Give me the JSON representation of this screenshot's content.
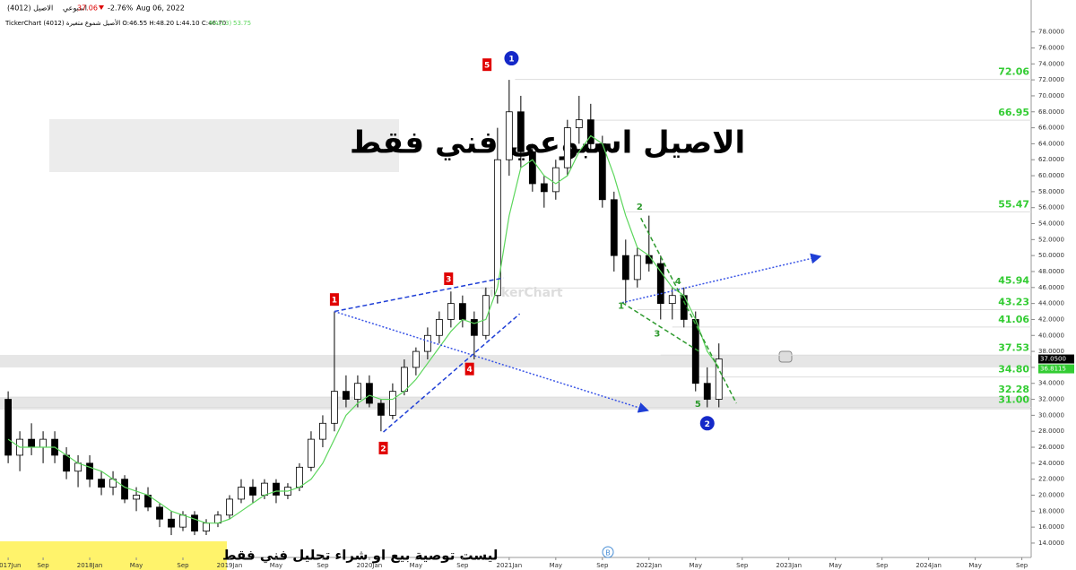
{
  "chart_data": {
    "type": "candlestick",
    "title": "الاصيل اسبوعي  فني فقط",
    "disclaimer": "ليست توصية بيع او شراء تحليل فني فقط",
    "symbol": "الاصيل (4012)",
    "timeframe": "اسبوعي",
    "last": 37.06,
    "change": "-2.76%",
    "date": "Aug 06, 2022",
    "ohlc_line": "TickerChart الأصيل شموع متغيرة (4012) O:46.55 H:48.20 L:44.10 C:46.70",
    "ma_value": 53.75,
    "watermark": "TickerChart",
    "marker_b": "B",
    "x": [
      0,
      1,
      2,
      3,
      4,
      5,
      6,
      7,
      8,
      9,
      10,
      11,
      12,
      13,
      14,
      15,
      16,
      17,
      18,
      19,
      20,
      21,
      22,
      23,
      24,
      25,
      26,
      27,
      28,
      29,
      30,
      31,
      32,
      33,
      34,
      35,
      36,
      37,
      38,
      39,
      40,
      41,
      42,
      43,
      44,
      45,
      46,
      47,
      48,
      49,
      50,
      51,
      52,
      53,
      54,
      55,
      56,
      57,
      58,
      59,
      60,
      61
    ],
    "candles": [
      [
        32,
        33,
        24,
        25
      ],
      [
        25,
        28,
        23,
        27
      ],
      [
        27,
        29,
        25,
        26
      ],
      [
        26,
        28,
        24,
        27
      ],
      [
        27,
        28,
        24,
        25
      ],
      [
        25,
        26,
        22,
        23
      ],
      [
        23,
        25,
        21,
        24
      ],
      [
        24,
        25,
        21,
        22
      ],
      [
        22,
        23,
        20,
        21
      ],
      [
        21,
        23,
        20,
        22
      ],
      [
        22,
        22.5,
        19,
        19.5
      ],
      [
        19.5,
        21,
        18,
        20
      ],
      [
        20,
        21,
        18,
        18.5
      ],
      [
        18.5,
        19,
        16,
        17
      ],
      [
        17,
        18,
        15,
        16
      ],
      [
        16,
        18,
        15.5,
        17.5
      ],
      [
        17.5,
        18,
        15,
        15.5
      ],
      [
        15.5,
        17,
        15,
        16.5
      ],
      [
        16.5,
        18,
        16,
        17.5
      ],
      [
        17.5,
        20,
        17,
        19.5
      ],
      [
        19.5,
        22,
        19,
        21
      ],
      [
        21,
        22,
        19,
        20
      ],
      [
        20,
        22,
        19.5,
        21.5
      ],
      [
        21.5,
        22,
        19,
        20
      ],
      [
        20,
        21.5,
        19.5,
        21
      ],
      [
        21,
        24,
        20.5,
        23.5
      ],
      [
        23.5,
        28,
        23,
        27
      ],
      [
        27,
        30,
        26,
        29
      ],
      [
        29,
        43,
        28,
        33
      ],
      [
        33,
        35,
        31,
        32
      ],
      [
        32,
        35,
        31,
        34
      ],
      [
        34,
        35,
        31,
        31.5
      ],
      [
        31.5,
        32,
        28,
        30
      ],
      [
        30,
        34,
        29.5,
        33
      ],
      [
        33,
        37,
        32.5,
        36
      ],
      [
        36,
        38.5,
        35,
        38
      ],
      [
        38,
        41,
        37,
        40
      ],
      [
        40,
        43,
        39,
        42
      ],
      [
        42,
        45.5,
        41,
        44
      ],
      [
        44,
        45,
        41,
        42
      ],
      [
        42,
        43,
        37,
        40
      ],
      [
        40,
        46,
        39.5,
        45
      ],
      [
        45,
        66,
        44,
        62
      ],
      [
        62,
        72,
        60,
        68
      ],
      [
        68,
        70,
        61,
        63
      ],
      [
        63,
        64,
        58,
        59
      ],
      [
        59,
        60,
        56,
        58
      ],
      [
        58,
        62,
        57,
        61
      ],
      [
        61,
        67,
        60,
        66
      ],
      [
        66,
        70,
        64,
        67
      ],
      [
        67,
        69,
        63,
        64
      ],
      [
        64,
        65,
        56,
        57
      ],
      [
        57,
        58,
        48,
        50
      ],
      [
        50,
        52,
        44,
        47
      ],
      [
        47,
        51,
        46,
        50
      ],
      [
        50,
        55,
        48,
        49
      ],
      [
        49,
        50,
        42,
        44
      ],
      [
        44,
        46,
        42,
        45
      ],
      [
        45,
        46,
        41,
        42
      ],
      [
        42,
        43,
        33,
        34
      ],
      [
        34,
        36,
        31,
        32
      ],
      [
        32,
        39,
        31,
        37.06
      ]
    ],
    "series": [
      {
        "name": "MA(13)",
        "color": "#5cd65c",
        "values": [
          27,
          26,
          26,
          26,
          26,
          25,
          24,
          23.5,
          23,
          22,
          21,
          20.5,
          20,
          19,
          18,
          17.5,
          17,
          16.5,
          16.5,
          17,
          18,
          19,
          20,
          20.5,
          20.5,
          21,
          22,
          24,
          27,
          30,
          31.5,
          32.5,
          32,
          32,
          33,
          34.5,
          36.5,
          38.5,
          40.5,
          42,
          41.5,
          42,
          46,
          55,
          61,
          62,
          60,
          59,
          60,
          63,
          65,
          64,
          60,
          55,
          51,
          50,
          48,
          46,
          45,
          42,
          38,
          36
        ]
      }
    ],
    "xlim": [
      -0.7,
      87.8
    ],
    "ylim": [
      12.2,
      82
    ],
    "xticks": [
      {
        "value": 0,
        "label": "2017Jun"
      },
      {
        "value": 3,
        "label": "Sep"
      },
      {
        "value": 7,
        "label": "2018Jan"
      },
      {
        "value": 11,
        "label": "May"
      },
      {
        "value": 15,
        "label": "Sep"
      },
      {
        "value": 19,
        "label": "2019Jan"
      },
      {
        "value": 23,
        "label": "May"
      },
      {
        "value": 27,
        "label": "Sep"
      },
      {
        "value": 31,
        "label": "2020Jan"
      },
      {
        "value": 35,
        "label": "May"
      },
      {
        "value": 39,
        "label": "Sep"
      },
      {
        "value": 43,
        "label": "2021Jan"
      },
      {
        "value": 47,
        "label": "May"
      },
      {
        "value": 51,
        "label": "Sep"
      },
      {
        "value": 55,
        "label": "2022Jan"
      },
      {
        "value": 59,
        "label": "May"
      },
      {
        "value": 63,
        "label": "Sep"
      },
      {
        "value": 67,
        "label": "2023Jan"
      },
      {
        "value": 71,
        "label": "May"
      },
      {
        "value": 75,
        "label": "Sep"
      },
      {
        "value": 79,
        "label": "2024Jan"
      },
      {
        "value": 83,
        "label": "May"
      },
      {
        "value": 87,
        "label": "Sep"
      }
    ],
    "yticks": [
      {
        "value": 14,
        "label": "14.0000"
      },
      {
        "value": 16,
        "label": "16.0000"
      },
      {
        "value": 18,
        "label": "18.0000"
      },
      {
        "value": 20,
        "label": "20.0000"
      },
      {
        "value": 22,
        "label": "22.0000"
      },
      {
        "value": 24,
        "label": "24.0000"
      },
      {
        "value": 26,
        "label": "26.0000"
      },
      {
        "value": 28,
        "label": "28.0000"
      },
      {
        "value": 30,
        "label": "30.0000"
      },
      {
        "value": 32,
        "label": "32.0000"
      },
      {
        "value": 34,
        "label": "34.0000"
      },
      {
        "value": 36,
        "label": "36.0000"
      },
      {
        "value": 38,
        "label": "38.0000"
      },
      {
        "value": 40,
        "label": "40.0000"
      },
      {
        "value": 42,
        "label": "42.0000"
      },
      {
        "value": 44,
        "label": "44.0000"
      },
      {
        "value": 46,
        "label": "46.0000"
      },
      {
        "value": 48,
        "label": "48.0000"
      },
      {
        "value": 50,
        "label": "50.0000"
      },
      {
        "value": 52,
        "label": "52.0000"
      },
      {
        "value": 54,
        "label": "54.0000"
      },
      {
        "value": 56,
        "label": "56.0000"
      },
      {
        "value": 58,
        "label": "58.0000"
      },
      {
        "value": 60,
        "label": "60.0000"
      },
      {
        "value": 62,
        "label": "62.0000"
      },
      {
        "value": 64,
        "label": "64.0000"
      },
      {
        "value": 66,
        "label": "66.0000"
      },
      {
        "value": 68,
        "label": "68.0000"
      },
      {
        "value": 70,
        "label": "70.0000"
      },
      {
        "value": 72,
        "label": "72.0000"
      },
      {
        "value": 74,
        "label": "74.0000"
      },
      {
        "value": 76,
        "label": "76.0000"
      },
      {
        "value": 78,
        "label": "78.0000"
      }
    ],
    "levels": [
      {
        "value": 72.06,
        "label": "72.06",
        "from": 43.5
      },
      {
        "value": 66.95,
        "label": "66.95",
        "from": 50
      },
      {
        "value": 55.47,
        "label": "55.47",
        "from": 53
      },
      {
        "value": 45.94,
        "label": "45.94",
        "from": 39.3
      },
      {
        "value": 43.23,
        "label": "43.23",
        "from": 54
      },
      {
        "value": 41.06,
        "label": "41.06",
        "from": 57
      },
      {
        "value": 37.53,
        "label": "37.53",
        "from": 56
      },
      {
        "value": 34.8,
        "label": "34.80",
        "from": 59
      },
      {
        "value": 32.28,
        "label": "32.28",
        "from": 0
      },
      {
        "value": 31,
        "label": "31.00",
        "from": 0
      }
    ],
    "price_tags": [
      {
        "value": 37.05,
        "label": "37.0500",
        "color": "#000000"
      },
      {
        "value": 36.8115,
        "label": "36.8115",
        "color": "#33cc33"
      }
    ],
    "trendlines": [
      {
        "x": [
          28,
          42.5
        ],
        "y": [
          43,
          47.2
        ],
        "color": "#1f3fd6",
        "dash": "5,3"
      },
      {
        "x": [
          32.2,
          43.9
        ],
        "y": [
          27.9,
          42.7
        ],
        "color": "#1f3fd6",
        "dash": "5,3"
      },
      {
        "x": [
          28,
          54.9
        ],
        "y": [
          43,
          30.6
        ],
        "color": "#3a55e6",
        "dash": "2,2",
        "arrow": true
      },
      {
        "x": [
          52.7,
          69.7
        ],
        "y": [
          44.1,
          49.9
        ],
        "color": "#3a55e6",
        "dash": "2,2",
        "arrow": true
      },
      {
        "x": [
          54.3,
          62.5
        ],
        "y": [
          54.7,
          31.5
        ],
        "color": "#2e9a2e",
        "dash": "5,3"
      },
      {
        "x": [
          52.7,
          59.3
        ],
        "y": [
          44.1,
          38
        ],
        "color": "#2e9a2e",
        "dash": "5,3"
      }
    ],
    "annotations": [
      {
        "text": "1",
        "x": 28,
        "y": 44.5,
        "style": "red"
      },
      {
        "text": "2",
        "x": 32.2,
        "y": 25.9,
        "style": "red"
      },
      {
        "text": "3",
        "x": 37.8,
        "y": 47.1,
        "style": "red"
      },
      {
        "text": "4",
        "x": 39.6,
        "y": 35.8,
        "style": "red"
      },
      {
        "text": "5",
        "x": 41.1,
        "y": 73.9,
        "style": "red"
      },
      {
        "text": "1",
        "x": 52.6,
        "y": 43.8,
        "style": "green"
      },
      {
        "text": "2",
        "x": 54.2,
        "y": 56.2,
        "style": "green"
      },
      {
        "text": "3",
        "x": 55.7,
        "y": 40.3,
        "style": "green"
      },
      {
        "text": "4",
        "x": 57.5,
        "y": 46.9,
        "style": "green"
      },
      {
        "text": "5",
        "x": 59.2,
        "y": 31.5,
        "style": "green"
      },
      {
        "text": "1",
        "x": 43.2,
        "y": 74.7,
        "style": "blue"
      },
      {
        "text": "2",
        "x": 60,
        "y": 29,
        "style": "blue"
      }
    ]
  }
}
